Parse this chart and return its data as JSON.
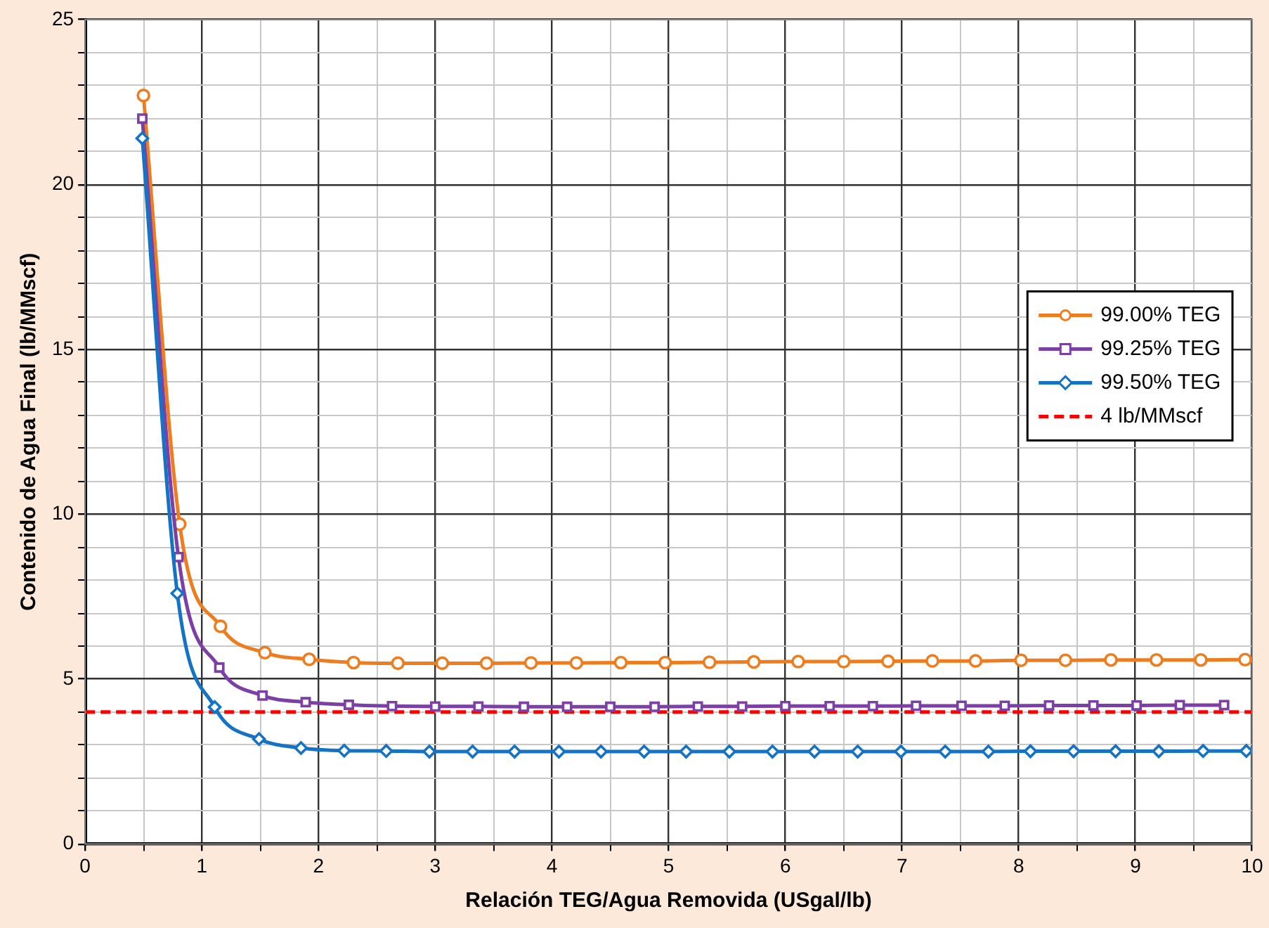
{
  "chart_data": {
    "type": "line",
    "xlabel": "Relación TEG/Agua Removida (USgal/lb)",
    "ylabel": "Contenido de Agua Final (lb/MMscf)",
    "xlim": [
      0,
      10
    ],
    "ylim": [
      0,
      25
    ],
    "xticks": [
      0,
      {
        "value": 0.5,
        "label": null
      },
      1,
      {
        "value": 1.5,
        "label": null
      },
      2,
      {
        "value": 2.5,
        "label": null
      },
      3,
      {
        "value": 3.5,
        "label": null
      },
      4,
      {
        "value": 4.5,
        "label": null
      },
      5,
      {
        "value": 5.5,
        "label": null
      },
      6,
      {
        "value": 6.5,
        "label": null
      },
      7,
      {
        "value": 7.5,
        "label": null
      },
      8,
      {
        "value": 8.5,
        "label": null
      },
      9,
      {
        "value": 9.5,
        "label": null
      },
      10
    ],
    "yticks": [
      0,
      {
        "value": 1,
        "label": null
      },
      {
        "value": 2,
        "label": null
      },
      {
        "value": 3,
        "label": null
      },
      {
        "value": 4,
        "label": null
      },
      5,
      {
        "value": 6,
        "label": null
      },
      {
        "value": 7,
        "label": null
      },
      {
        "value": 8,
        "label": null
      },
      {
        "value": 9,
        "label": null
      },
      10,
      {
        "value": 11,
        "label": null
      },
      {
        "value": 12,
        "label": null
      },
      {
        "value": 13,
        "label": null
      },
      {
        "value": 14,
        "label": null
      },
      15,
      {
        "value": 16,
        "label": null
      },
      {
        "value": 17,
        "label": null
      },
      {
        "value": 18,
        "label": null
      },
      {
        "value": 19,
        "label": null
      },
      20,
      {
        "value": 21,
        "label": null
      },
      {
        "value": 22,
        "label": null
      },
      {
        "value": 23,
        "label": null
      },
      {
        "value": 24,
        "label": null
      },
      25
    ],
    "grid": true,
    "legend": "right",
    "series": [
      {
        "name": "99.00% TEG",
        "color": "#ed7d1f",
        "marker": "circle",
        "x": [
          0.5,
          0.81,
          1.16,
          1.54,
          1.92,
          2.3,
          2.68,
          3.06,
          3.44,
          3.82,
          4.21,
          4.59,
          4.97,
          5.35,
          5.73,
          6.11,
          6.5,
          6.88,
          7.26,
          7.63,
          8.02,
          8.4,
          8.79,
          9.18,
          9.56,
          9.94
        ],
        "values": [
          22.7,
          9.7,
          6.6,
          5.8,
          5.6,
          5.5,
          5.48,
          5.48,
          5.48,
          5.49,
          5.49,
          5.5,
          5.5,
          5.51,
          5.52,
          5.53,
          5.53,
          5.54,
          5.55,
          5.55,
          5.57,
          5.57,
          5.58,
          5.58,
          5.58,
          5.59
        ]
      },
      {
        "name": "99.25% TEG",
        "color": "#7b3fa6",
        "marker": "square",
        "x": [
          0.49,
          0.8,
          1.15,
          1.52,
          1.89,
          2.26,
          2.63,
          3.0,
          3.37,
          3.76,
          4.13,
          4.5,
          4.88,
          5.25,
          5.63,
          6.0,
          6.38,
          6.75,
          7.12,
          7.51,
          7.88,
          8.26,
          8.64,
          9.01,
          9.38,
          9.76
        ],
        "values": [
          22.0,
          8.7,
          5.35,
          4.5,
          4.3,
          4.22,
          4.18,
          4.17,
          4.17,
          4.16,
          4.16,
          4.16,
          4.16,
          4.17,
          4.17,
          4.18,
          4.18,
          4.18,
          4.19,
          4.19,
          4.19,
          4.2,
          4.2,
          4.2,
          4.21,
          4.21
        ]
      },
      {
        "name": "99.50% TEG",
        "color": "#1473c4",
        "marker": "diamond",
        "x": [
          0.49,
          0.79,
          1.11,
          1.49,
          1.85,
          2.22,
          2.58,
          2.95,
          3.32,
          3.68,
          4.06,
          4.42,
          4.79,
          5.15,
          5.52,
          5.89,
          6.25,
          6.62,
          6.99,
          7.37,
          7.74,
          8.1,
          8.47,
          8.83,
          9.2,
          9.58,
          9.95
        ],
        "values": [
          21.4,
          7.6,
          4.15,
          3.18,
          2.91,
          2.83,
          2.82,
          2.8,
          2.8,
          2.8,
          2.8,
          2.8,
          2.8,
          2.8,
          2.8,
          2.8,
          2.8,
          2.8,
          2.8,
          2.8,
          2.8,
          2.81,
          2.81,
          2.81,
          2.81,
          2.82,
          2.82
        ]
      }
    ],
    "ref_lines": [
      {
        "axis": "y",
        "value": 4,
        "label": "4 lb/MMscf",
        "color": "#ff0000",
        "line_style": "dashed"
      }
    ]
  }
}
